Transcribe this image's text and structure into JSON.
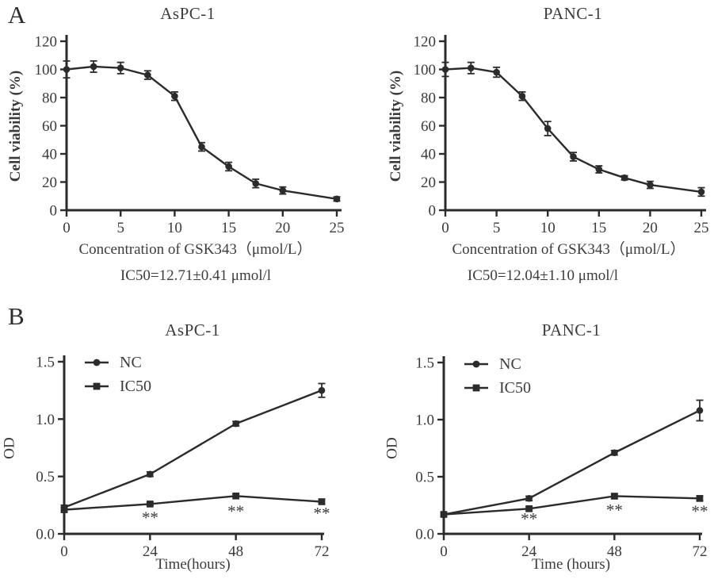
{
  "figure": {
    "panel_a_label": "A",
    "panel_b_label": "B",
    "background": "#ffffff",
    "ink": "#2b2b2b",
    "text_color": "#3a3a3a",
    "annotation_color": "#555555"
  },
  "chart_data": [
    {
      "id": "aspc1-viability",
      "panel": "A",
      "type": "line",
      "title": "AsPC-1",
      "xlabel": "Concentration of GSK343（μmol/L）",
      "ylabel": "Cell viability (%)",
      "caption": "IC50=12.71±0.41 μmol/l",
      "xlim": [
        0,
        25
      ],
      "ylim": [
        0,
        120
      ],
      "xticks": [
        "0",
        "5",
        "10",
        "15",
        "20",
        "25"
      ],
      "yticks": [
        "0",
        "20",
        "40",
        "60",
        "80",
        "100",
        "120"
      ],
      "grid": false,
      "legend": null,
      "series": [
        {
          "name": "GSK343",
          "marker": "circle",
          "x": [
            0,
            2.5,
            5,
            7.5,
            10,
            12.5,
            15,
            17.5,
            20,
            25
          ],
          "y": [
            100,
            102,
            101,
            96,
            81,
            45,
            31,
            19,
            14,
            8
          ],
          "err": [
            6,
            4,
            4,
            3,
            3,
            3,
            3,
            3,
            2.5,
            1.5
          ]
        }
      ],
      "annotations": []
    },
    {
      "id": "panc1-viability",
      "panel": "A",
      "type": "line",
      "title": "PANC-1",
      "xlabel": "Concentration of GSK343（μmol/L）",
      "ylabel": "Cell viability (%)",
      "caption": "IC50=12.04±1.10 μmol/l",
      "xlim": [
        0,
        25
      ],
      "ylim": [
        0,
        120
      ],
      "xticks": [
        "0",
        "5",
        "10",
        "15",
        "20",
        "25"
      ],
      "yticks": [
        "0",
        "20",
        "40",
        "60",
        "80",
        "100",
        "120"
      ],
      "grid": false,
      "legend": null,
      "series": [
        {
          "name": "GSK343",
          "marker": "circle",
          "x": [
            0,
            2.5,
            5,
            7.5,
            10,
            12.5,
            15,
            17.5,
            20,
            25
          ],
          "y": [
            100,
            101,
            98,
            81,
            58,
            38,
            29,
            23,
            18,
            13
          ],
          "err": [
            5,
            4,
            3.5,
            3,
            5,
            3,
            2.5,
            1.5,
            2.5,
            3
          ]
        }
      ],
      "annotations": []
    },
    {
      "id": "aspc1-growth",
      "panel": "B",
      "type": "line",
      "title": "AsPC-1",
      "xlabel": "Time(hours)",
      "ylabel": "OD",
      "caption": null,
      "xlim": [
        0,
        72
      ],
      "ylim": [
        0,
        1.5
      ],
      "xticks": [
        "0",
        "24",
        "48",
        "72"
      ],
      "yticks": [
        "0.0",
        "0.5",
        "1.0",
        "1.5"
      ],
      "grid": false,
      "legend": {
        "position": "top-left",
        "items": [
          "NC",
          "IC50"
        ]
      },
      "series": [
        {
          "name": "NC",
          "marker": "circle",
          "x": [
            0,
            24,
            48,
            72
          ],
          "y": [
            0.23,
            0.52,
            0.96,
            1.25
          ],
          "err": [
            0.02,
            0.02,
            0.02,
            0.06
          ]
        },
        {
          "name": "IC50",
          "marker": "square",
          "x": [
            0,
            24,
            48,
            72
          ],
          "y": [
            0.21,
            0.26,
            0.33,
            0.28
          ],
          "err": [
            0.02,
            0.015,
            0.015,
            0.02
          ]
        }
      ],
      "annotations": [
        {
          "text": "**",
          "x": 24,
          "y": 0.095
        },
        {
          "text": "**",
          "x": 48,
          "y": 0.15
        },
        {
          "text": "**",
          "x": 72,
          "y": 0.13
        }
      ]
    },
    {
      "id": "panc1-growth",
      "panel": "B",
      "type": "line",
      "title": "PANC-1",
      "xlabel": "Time (hours)",
      "ylabel": "OD",
      "caption": null,
      "xlim": [
        0,
        72
      ],
      "ylim": [
        0,
        1.5
      ],
      "xticks": [
        "0",
        "24",
        "48",
        "72"
      ],
      "yticks": [
        "0.0",
        "0.5",
        "1.0",
        "1.5"
      ],
      "grid": false,
      "legend": {
        "position": "top-left",
        "items": [
          "NC",
          "IC50"
        ]
      },
      "series": [
        {
          "name": "NC",
          "marker": "circle",
          "x": [
            0,
            24,
            48,
            72
          ],
          "y": [
            0.17,
            0.31,
            0.71,
            1.08
          ],
          "err": [
            0.015,
            0.02,
            0.02,
            0.09
          ]
        },
        {
          "name": "IC50",
          "marker": "square",
          "x": [
            0,
            24,
            48,
            72
          ],
          "y": [
            0.17,
            0.22,
            0.33,
            0.31
          ],
          "err": [
            0.015,
            0.02,
            0.02,
            0.02
          ]
        }
      ],
      "annotations": [
        {
          "text": "**",
          "x": 24,
          "y": 0.085
        },
        {
          "text": "**",
          "x": 48,
          "y": 0.16
        },
        {
          "text": "**",
          "x": 72,
          "y": 0.15
        }
      ]
    }
  ]
}
